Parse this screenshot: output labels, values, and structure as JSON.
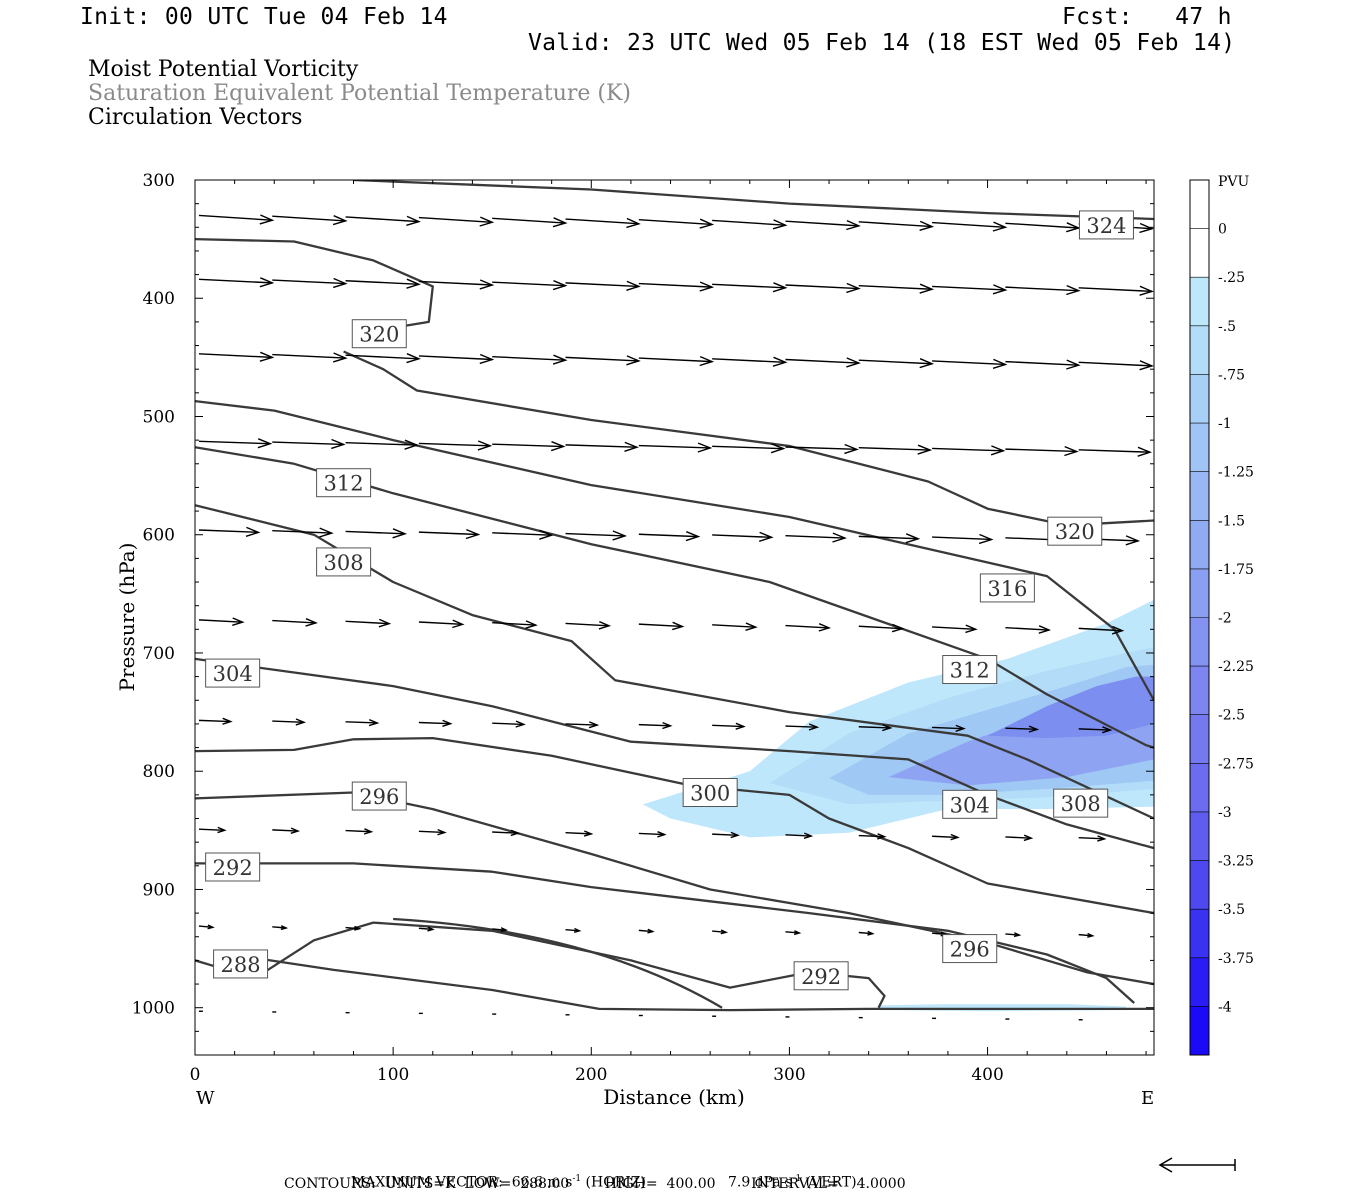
{
  "header": {
    "init": "Init: 00 UTC Tue 04 Feb 14",
    "fcst": "Fcst:   47 h",
    "valid": "Valid: 23 UTC Wed 05 Feb 14 (18 EST Wed 05 Feb 14)"
  },
  "titles": {
    "line1": "Moist Potential Vorticity",
    "line2": "Saturation Equivalent Potential Temperature (K)",
    "line3": "Circulation Vectors"
  },
  "footer": {
    "maxvec_a": "MAXIMUM VECTOR:  66.6 m s",
    "maxvec_b": " (HORIZ)",
    "maxvec_c": "7.9 dPa s",
    "maxvec_d": " (VERT)",
    "exp": "-1",
    "contours": "CONTOURS:  UNITS=K  LOW=  288.00        HIGH=  400.00        INTERVAL=    4.0000"
  },
  "colors": {
    "contour": "#3a3a3a",
    "vector": "#000000",
    "shade_light": "#bfe7fb",
    "shade_mid": "#9fc8f5",
    "shade_dark": "#7c8ff0"
  },
  "chart_data": {
    "type": "contour",
    "xlabel": "Distance (km)",
    "ylabel": "Pressure (hPa)",
    "xlim": [
      0,
      484
    ],
    "ylim": [
      1040,
      300
    ],
    "x_ticks": [
      "0",
      "100",
      "200",
      "300",
      "400"
    ],
    "y_ticks": [
      "300",
      "400",
      "500",
      "600",
      "700",
      "800",
      "900",
      "1000"
    ],
    "x_ends": {
      "left": "W",
      "right": "E"
    },
    "theta_es_contour_labels": [
      {
        "text": "324",
        "x": 460,
        "p": 338
      },
      {
        "text": "320",
        "x": 93,
        "p": 430
      },
      {
        "text": "312",
        "x": 75,
        "p": 556
      },
      {
        "text": "308",
        "x": 75,
        "p": 623
      },
      {
        "text": "304",
        "x": 19,
        "p": 717
      },
      {
        "text": "320",
        "x": 444,
        "p": 597
      },
      {
        "text": "316",
        "x": 410,
        "p": 645
      },
      {
        "text": "312",
        "x": 391,
        "p": 714
      },
      {
        "text": "300",
        "x": 260,
        "p": 818
      },
      {
        "text": "296",
        "x": 93,
        "p": 821
      },
      {
        "text": "304",
        "x": 391,
        "p": 828
      },
      {
        "text": "308",
        "x": 447,
        "p": 827
      },
      {
        "text": "292",
        "x": 19,
        "p": 881
      },
      {
        "text": "296",
        "x": 391,
        "p": 950
      },
      {
        "text": "292",
        "x": 316,
        "p": 973
      },
      {
        "text": "288",
        "x": 23,
        "p": 963
      }
    ],
    "colorbar": {
      "units": "PVU",
      "levels": [
        "0",
        "-.25",
        "-.5",
        "-.75",
        "-1",
        "-1.25",
        "-1.5",
        "-1.75",
        "-2",
        "-2.25",
        "-2.5",
        "-2.75",
        "-3",
        "-3.25",
        "-3.5",
        "-3.75",
        "-4"
      ],
      "colors": [
        "#ffffff",
        "#ffffff",
        "#bfe7fb",
        "#b3dcf8",
        "#a8d0f6",
        "#9fc4f5",
        "#98b7f4",
        "#91abf3",
        "#8b9ff2",
        "#8493f1",
        "#7d86f0",
        "#7479ef",
        "#6b6cef",
        "#5f5def",
        "#4d48f0",
        "#3a32f2",
        "#2a1cf4",
        "#1a0af8"
      ]
    },
    "max_vector_arrow": "left"
  }
}
